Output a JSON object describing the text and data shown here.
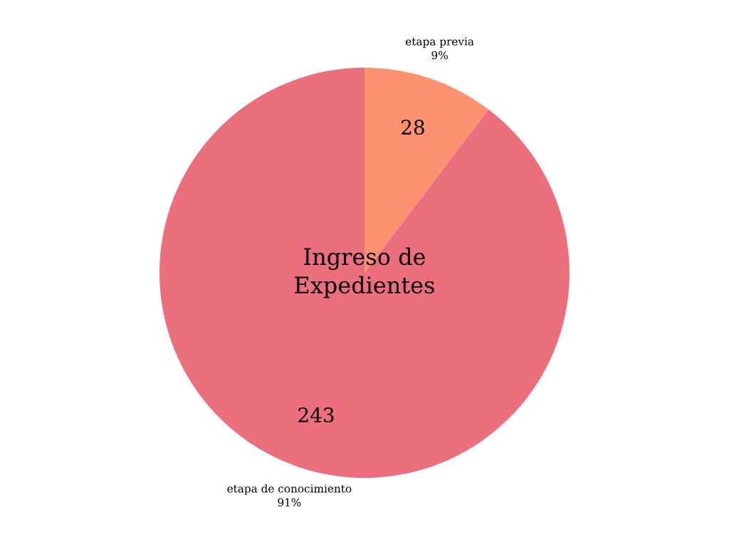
{
  "chart_data": {
    "type": "pie",
    "title": "Ingreso de\nExpedientes",
    "categories": [
      "etapa previa",
      "etapa de conocimiento"
    ],
    "values": [
      28,
      243
    ],
    "colors": [
      "#fd9272",
      "#ec6f7e"
    ],
    "value_labels": [
      "28",
      "243"
    ],
    "annotations": [
      "9%",
      "91%"
    ]
  }
}
